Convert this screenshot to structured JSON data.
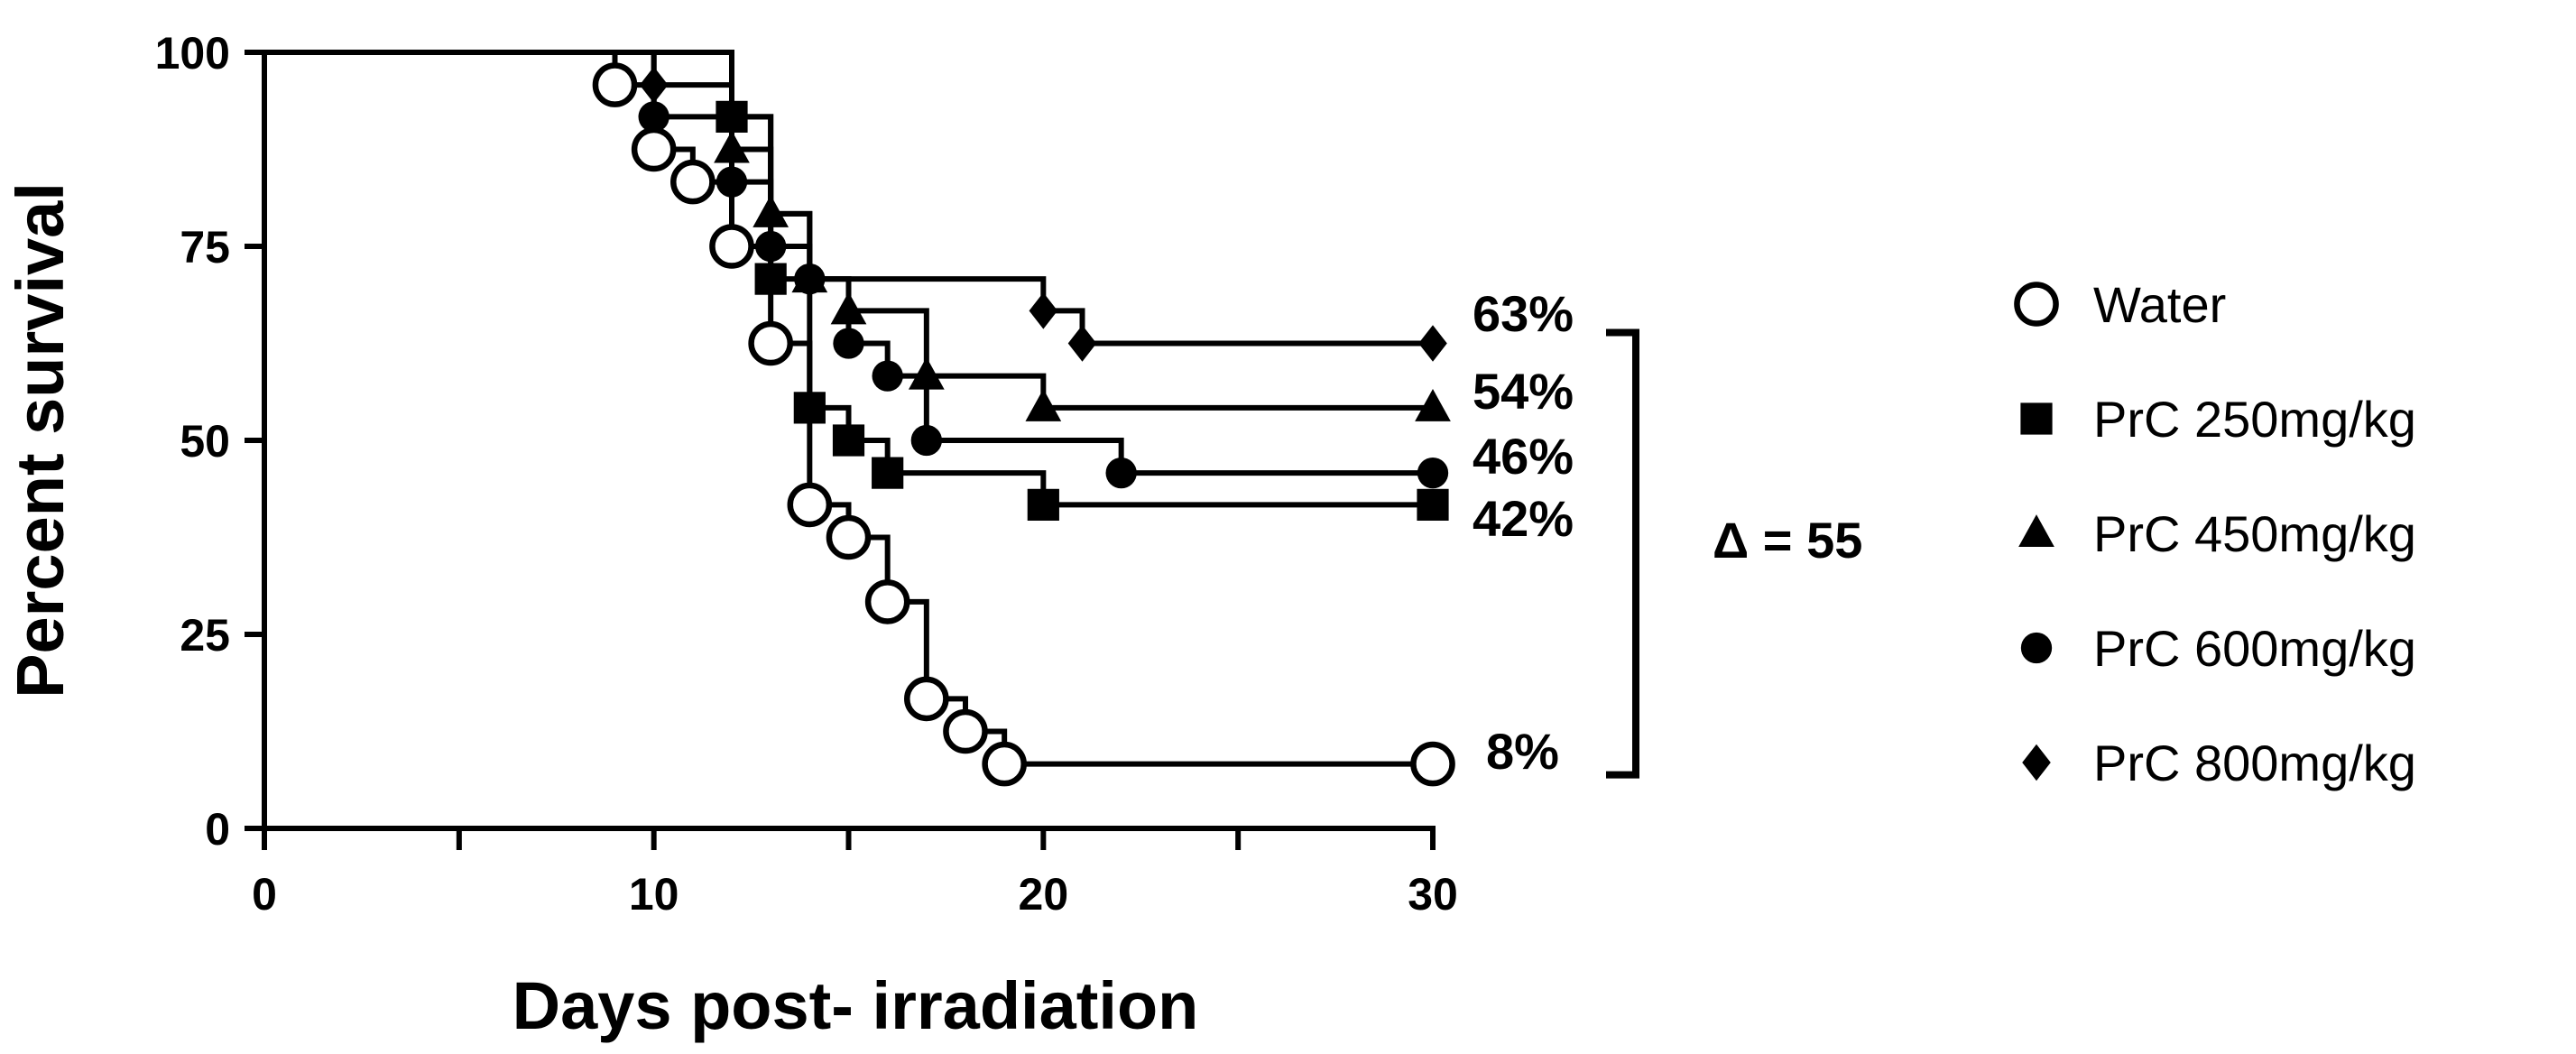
{
  "chart_data": {
    "type": "line",
    "subtype": "kaplan-meier step survival curve",
    "xlabel": "Days post- irradiation",
    "ylabel": "Percent survival",
    "xlim": [
      0,
      30
    ],
    "ylim": [
      0,
      100
    ],
    "xticks": [
      0,
      10,
      20,
      30
    ],
    "xticks_minor": [
      5,
      15,
      25
    ],
    "yticks": [
      0,
      25,
      50,
      75,
      100
    ],
    "legend_position": "right",
    "series": [
      {
        "name": "Water",
        "marker": "open-circle",
        "steps": [
          [
            0,
            100
          ],
          [
            9,
            95.8
          ],
          [
            10,
            87.5
          ],
          [
            11,
            83.3
          ],
          [
            12,
            75
          ],
          [
            13,
            62.5
          ],
          [
            14,
            41.7
          ],
          [
            15,
            37.5
          ],
          [
            16,
            29.2
          ],
          [
            17,
            16.7
          ],
          [
            18,
            12.5
          ],
          [
            19,
            8.3
          ]
        ],
        "markers": [
          [
            9,
            95.8
          ],
          [
            10,
            87.5
          ],
          [
            11,
            83.3
          ],
          [
            12,
            75
          ],
          [
            13,
            62.5
          ],
          [
            14,
            41.7
          ],
          [
            15,
            37.5
          ],
          [
            16,
            29.2
          ],
          [
            17,
            16.7
          ],
          [
            18,
            12.5
          ],
          [
            19,
            8.3
          ],
          [
            30,
            8.3
          ]
        ],
        "end_label": "8%"
      },
      {
        "name": "PrC 250mg/kg",
        "marker": "square",
        "steps": [
          [
            0,
            100
          ],
          [
            12,
            91.7
          ],
          [
            13,
            70.8
          ],
          [
            14,
            54.2
          ],
          [
            15,
            50
          ],
          [
            16,
            45.8
          ],
          [
            20,
            41.7
          ]
        ],
        "markers": [
          [
            12,
            91.7
          ],
          [
            13,
            70.8
          ],
          [
            14,
            54.2
          ],
          [
            15,
            50
          ],
          [
            16,
            45.8
          ],
          [
            20,
            41.7
          ],
          [
            30,
            41.7
          ]
        ],
        "end_label": "42%"
      },
      {
        "name": "PrC 450mg/kg",
        "marker": "triangle",
        "steps": [
          [
            0,
            100
          ],
          [
            12,
            87.5
          ],
          [
            13,
            79.2
          ],
          [
            14,
            70.8
          ],
          [
            15,
            66.7
          ],
          [
            17,
            58.3
          ],
          [
            20,
            54.2
          ]
        ],
        "markers": [
          [
            12,
            87.5
          ],
          [
            13,
            79.2
          ],
          [
            14,
            70.8
          ],
          [
            15,
            66.7
          ],
          [
            17,
            58.3
          ],
          [
            20,
            54.2
          ],
          [
            30,
            54.2
          ]
        ],
        "end_label": "54%"
      },
      {
        "name": "PrC 600mg/kg",
        "marker": "filled-circle",
        "steps": [
          [
            0,
            100
          ],
          [
            10,
            91.7
          ],
          [
            12,
            83.3
          ],
          [
            13,
            75
          ],
          [
            14,
            70.8
          ],
          [
            15,
            62.5
          ],
          [
            16,
            58.3
          ],
          [
            17,
            50
          ],
          [
            22,
            45.8
          ]
        ],
        "markers": [
          [
            10,
            91.7
          ],
          [
            12,
            83.3
          ],
          [
            13,
            75
          ],
          [
            14,
            70.8
          ],
          [
            15,
            62.5
          ],
          [
            16,
            58.3
          ],
          [
            17,
            50
          ],
          [
            22,
            45.8
          ],
          [
            30,
            45.8
          ]
        ],
        "end_label": "46%"
      },
      {
        "name": "PrC 800mg/kg",
        "marker": "diamond",
        "steps": [
          [
            0,
            100
          ],
          [
            10,
            95.8
          ],
          [
            12,
            91.7
          ],
          [
            13,
            79.2
          ],
          [
            14,
            70.8
          ],
          [
            20,
            66.7
          ],
          [
            21,
            62.5
          ]
        ],
        "markers": [
          [
            10,
            95.8
          ],
          [
            20,
            66.7
          ],
          [
            21,
            62.5
          ],
          [
            30,
            62.5
          ]
        ],
        "end_label": "63%"
      }
    ],
    "annotations": [
      {
        "text": "Δ = 55",
        "type": "bracket",
        "from_value": 8.3,
        "to_value": 62.5
      }
    ]
  }
}
